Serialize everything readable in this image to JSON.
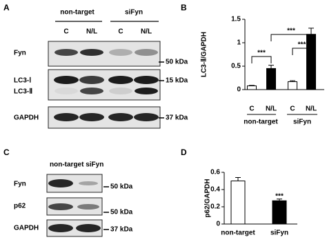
{
  "blots": [
    {
      "label": "A",
      "groups": [
        "non-target",
        "siFyn"
      ],
      "lanes": [
        "C",
        "N/L",
        "C",
        "N/L"
      ],
      "rows": [
        "Fyn",
        "LC3-Ⅰ",
        "LC3-Ⅱ",
        "GAPDH"
      ],
      "markers": [
        "50 kDa",
        "15 kDa",
        "37 kDa"
      ]
    },
    {
      "label": "C",
      "header": "non-target siFyn",
      "rows": [
        "Fyn",
        "p62",
        "GAPDH"
      ],
      "markers": [
        "50 kDa",
        "50 kDa",
        "37 kDa"
      ]
    }
  ],
  "chart_data": [
    {
      "type": "bar",
      "label": "B",
      "y_label": "LC3-Ⅱ/GAPDH",
      "categories": [
        "C",
        "N/L",
        "C",
        "N/L"
      ],
      "groups": [
        "non-target",
        "siFyn"
      ],
      "values": [
        0.08,
        0.45,
        0.17,
        1.18
      ],
      "errors": [
        0.01,
        0.07,
        0.02,
        0.13
      ],
      "colors": [
        "#ffffff",
        "#000000",
        "#ffffff",
        "#000000"
      ],
      "ylim": [
        0,
        1.5
      ],
      "yticks": [
        0,
        0.5,
        1,
        1.5
      ],
      "annotations": [
        "***",
        "***",
        "***"
      ]
    },
    {
      "type": "bar",
      "label": "D",
      "y_label": "p62/GAPDH",
      "categories": [
        "non-target",
        "siFyn"
      ],
      "values": [
        0.5,
        0.27
      ],
      "errors": [
        0.04,
        0.02
      ],
      "colors": [
        "#ffffff",
        "#000000"
      ],
      "ylim": [
        0,
        0.6
      ],
      "yticks": [
        0,
        0.2,
        0.4,
        0.6
      ],
      "annotations": [
        "***"
      ]
    }
  ]
}
